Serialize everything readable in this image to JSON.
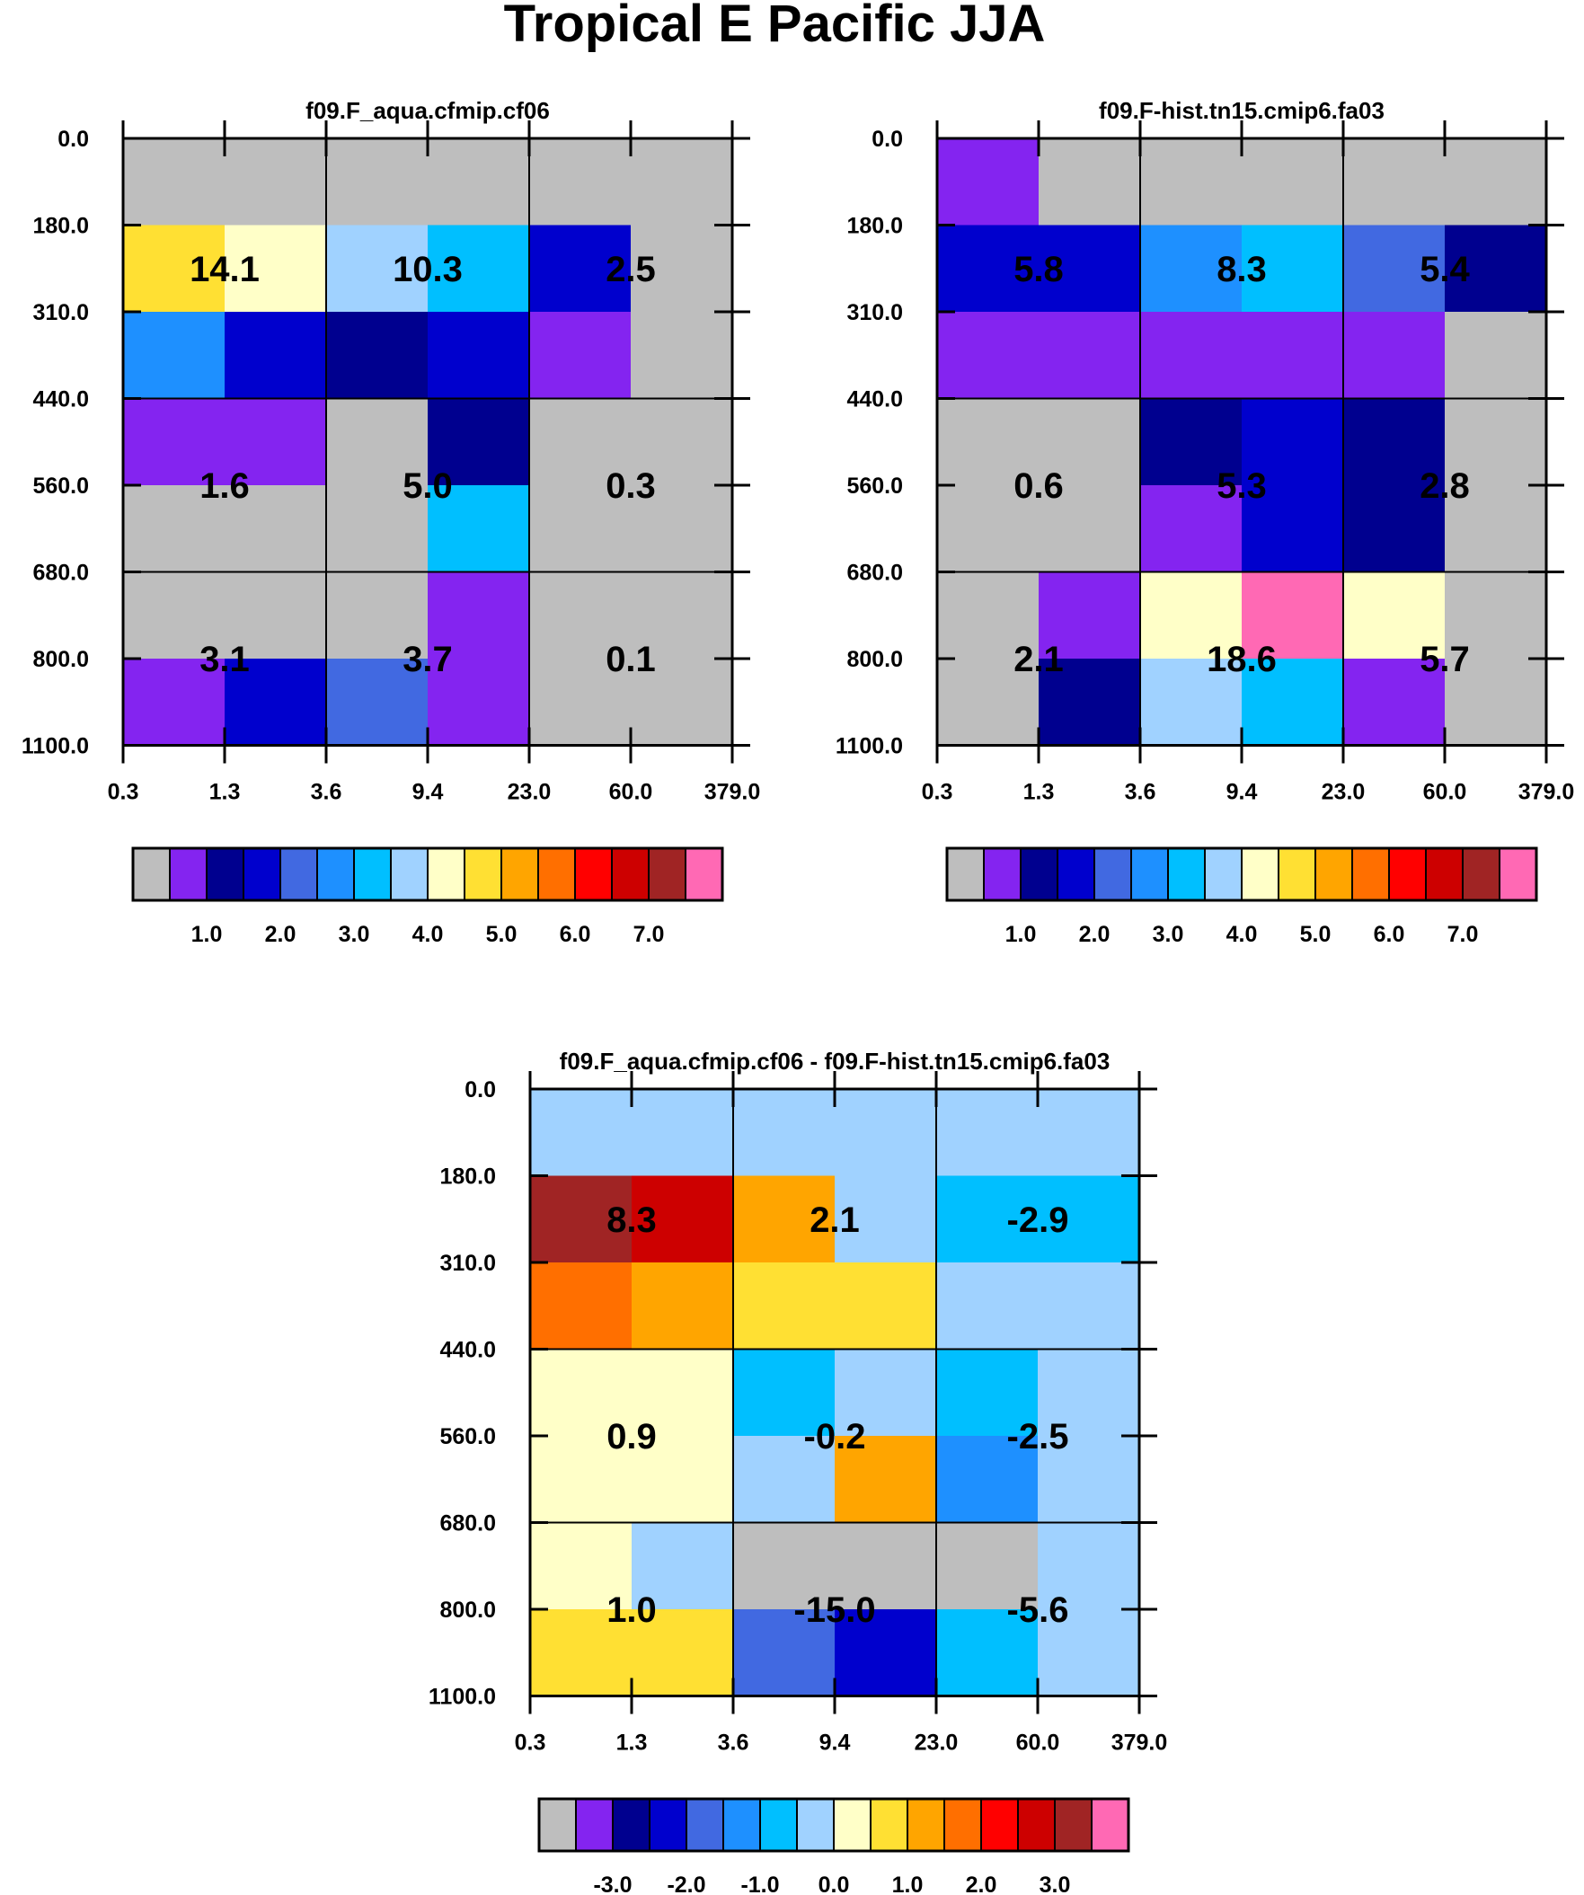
{
  "figure_title": "Tropical E Pacific JJA",
  "colors": {
    "grey": "#BEBEBE",
    "purple": "#8424F0",
    "navy": "#00008F",
    "blue": "#0000CD",
    "royal": "#4169E1",
    "dodger": "#1E90FF",
    "sky": "#00BFFF",
    "lightblue": "#A0D2FF",
    "cream": "#FFFFC8",
    "gold": "#FFE033",
    "orange": "#FFA500",
    "darkorange": "#FF6F00",
    "red": "#FF0000",
    "crimson": "#CD0000",
    "brown": "#A02424",
    "pink": "#FF69B4"
  },
  "colorbars": {
    "main": {
      "swatches": [
        "grey",
        "purple",
        "navy",
        "blue",
        "royal",
        "dodger",
        "sky",
        "lightblue",
        "cream",
        "gold",
        "orange",
        "darkorange",
        "red",
        "crimson",
        "brown",
        "pink"
      ],
      "labels": [
        "1.0",
        "2.0",
        "3.0",
        "4.0",
        "5.0",
        "6.0",
        "7.0"
      ],
      "label_boundary_index": [
        2,
        4,
        6,
        8,
        10,
        12,
        14
      ]
    },
    "diff": {
      "swatches": [
        "grey",
        "purple",
        "navy",
        "blue",
        "royal",
        "dodger",
        "sky",
        "lightblue",
        "cream",
        "gold",
        "orange",
        "darkorange",
        "red",
        "crimson",
        "brown",
        "pink"
      ],
      "labels": [
        "-3.0",
        "-2.0",
        "-1.0",
        "0.0",
        "1.0",
        "2.0",
        "3.0"
      ],
      "label_boundary_index": [
        2,
        4,
        6,
        8,
        10,
        12,
        14
      ]
    }
  },
  "chart_data": [
    {
      "type": "heatmap",
      "title": "f09.F_aqua.cfmip.cf06",
      "x_tick_labels": [
        "0.3",
        "1.3",
        "3.6",
        "9.4",
        "23.0",
        "60.0",
        "379.0"
      ],
      "y_tick_labels": [
        "0.0",
        "180.0",
        "310.0",
        "440.0",
        "560.0",
        "680.0",
        "800.0",
        "1100.0"
      ],
      "cell_colors": [
        [
          "grey",
          "grey",
          "grey",
          "grey",
          "grey",
          "grey"
        ],
        [
          "gold",
          "cream",
          "lightblue",
          "sky",
          "blue",
          "grey"
        ],
        [
          "dodger",
          "blue",
          "navy",
          "blue",
          "purple",
          "grey"
        ],
        [
          "purple",
          "purple",
          "grey",
          "navy",
          "grey",
          "grey"
        ],
        [
          "grey",
          "grey",
          "grey",
          "sky",
          "grey",
          "grey"
        ],
        [
          "grey",
          "grey",
          "grey",
          "purple",
          "grey",
          "grey"
        ],
        [
          "purple",
          "blue",
          "royal",
          "purple",
          "grey",
          "grey"
        ]
      ],
      "block_values": [
        [
          "14.1",
          "10.3",
          "2.5"
        ],
        [
          "1.6",
          "5.0",
          "0.3"
        ],
        [
          "3.1",
          "3.7",
          "0.1"
        ]
      ],
      "colorbar": "main"
    },
    {
      "type": "heatmap",
      "title": "f09.F-hist.tn15.cmip6.fa03",
      "x_tick_labels": [
        "0.3",
        "1.3",
        "3.6",
        "9.4",
        "23.0",
        "60.0",
        "379.0"
      ],
      "y_tick_labels": [
        "0.0",
        "180.0",
        "310.0",
        "440.0",
        "560.0",
        "680.0",
        "800.0",
        "1100.0"
      ],
      "cell_colors": [
        [
          "purple",
          "grey",
          "grey",
          "grey",
          "grey",
          "grey"
        ],
        [
          "blue",
          "blue",
          "dodger",
          "sky",
          "royal",
          "navy"
        ],
        [
          "purple",
          "purple",
          "purple",
          "purple",
          "purple",
          "grey"
        ],
        [
          "grey",
          "grey",
          "navy",
          "blue",
          "navy",
          "grey"
        ],
        [
          "grey",
          "grey",
          "purple",
          "blue",
          "navy",
          "grey"
        ],
        [
          "grey",
          "purple",
          "cream",
          "pink",
          "cream",
          "grey"
        ],
        [
          "grey",
          "navy",
          "lightblue",
          "sky",
          "purple",
          "grey"
        ]
      ],
      "block_values": [
        [
          "5.8",
          "8.3",
          "5.4"
        ],
        [
          "0.6",
          "5.3",
          "2.8"
        ],
        [
          "2.1",
          "18.6",
          "5.7"
        ]
      ],
      "colorbar": "main"
    },
    {
      "type": "heatmap",
      "title": "f09.F_aqua.cfmip.cf06 - f09.F-hist.tn15.cmip6.fa03",
      "x_tick_labels": [
        "0.3",
        "1.3",
        "3.6",
        "9.4",
        "23.0",
        "60.0",
        "379.0"
      ],
      "y_tick_labels": [
        "0.0",
        "180.0",
        "310.0",
        "440.0",
        "560.0",
        "680.0",
        "800.0",
        "1100.0"
      ],
      "cell_colors": [
        [
          "lightblue",
          "lightblue",
          "lightblue",
          "lightblue",
          "lightblue",
          "lightblue"
        ],
        [
          "brown",
          "crimson",
          "orange",
          "lightblue",
          "sky",
          "sky"
        ],
        [
          "darkorange",
          "orange",
          "gold",
          "gold",
          "lightblue",
          "lightblue"
        ],
        [
          "cream",
          "cream",
          "sky",
          "lightblue",
          "sky",
          "lightblue"
        ],
        [
          "cream",
          "cream",
          "lightblue",
          "orange",
          "dodger",
          "lightblue"
        ],
        [
          "cream",
          "lightblue",
          "grey",
          "grey",
          "grey",
          "lightblue"
        ],
        [
          "gold",
          "gold",
          "royal",
          "blue",
          "sky",
          "lightblue"
        ]
      ],
      "block_values": [
        [
          "8.3",
          "2.1",
          "-2.9"
        ],
        [
          "0.9",
          "-0.2",
          "-2.5"
        ],
        [
          "1.0",
          "-15.0",
          "-5.6"
        ]
      ],
      "colorbar": "diff"
    }
  ]
}
